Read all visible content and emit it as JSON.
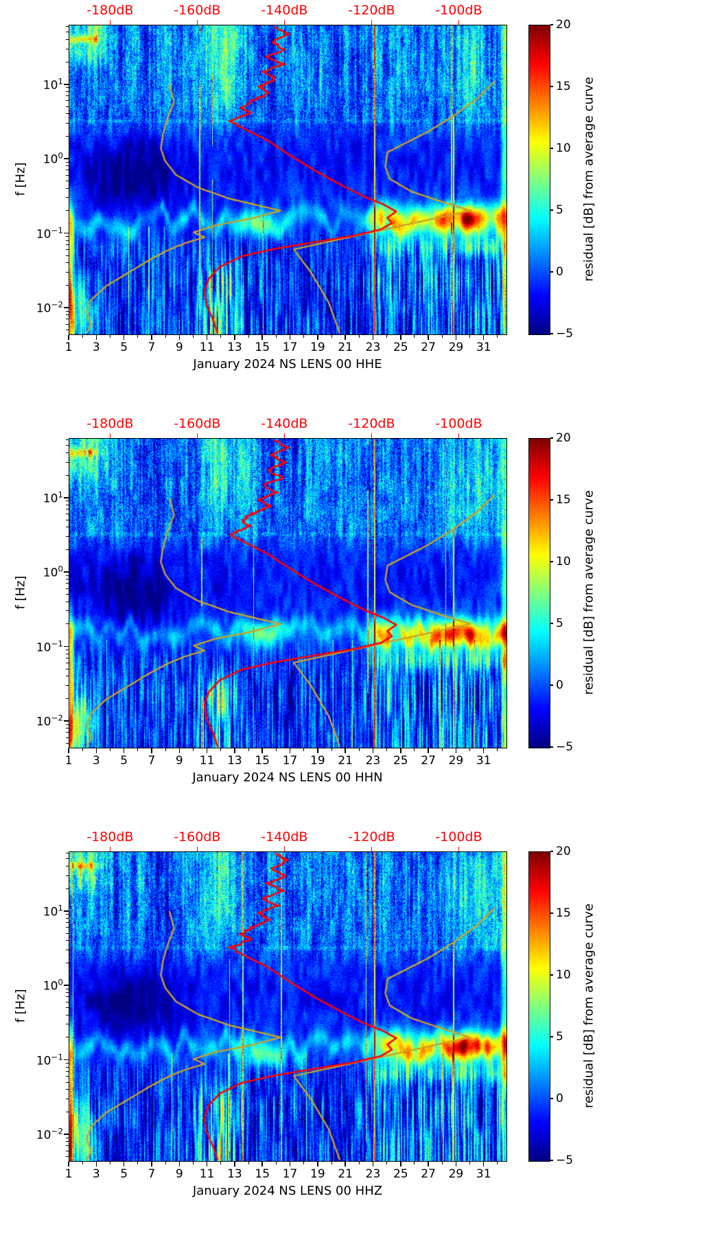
{
  "chart_data": {
    "type": "heatmap",
    "title": "",
    "panels": [
      {
        "channel": "HHE",
        "xlabel": "January 2024 NS LENS 00 HHE"
      },
      {
        "channel": "HHN",
        "xlabel": "January 2024 NS LENS 00 HHN"
      },
      {
        "channel": "HHZ",
        "xlabel": "January 2024 NS LENS 00 HHZ"
      }
    ],
    "axes": {
      "ylabel": "f [Hz]",
      "y_scale": "log",
      "freq_range_hz": [
        0.00447,
        63.1
      ],
      "y_tick_exponents": [
        1,
        0,
        -1,
        -2
      ],
      "day_range": [
        1,
        32.6
      ],
      "x_ticks": [
        1,
        3,
        5,
        7,
        9,
        11,
        13,
        15,
        17,
        19,
        21,
        23,
        25,
        27,
        29,
        31
      ],
      "top_axis": {
        "color": "#ff0000",
        "db_range": [
          -189.5,
          -89.2
        ],
        "ticks": [
          {
            "db": -180,
            "label": "-180dB"
          },
          {
            "db": -160,
            "label": "-160dB"
          },
          {
            "db": -140,
            "label": "-140dB"
          },
          {
            "db": -120,
            "label": "-120dB"
          },
          {
            "db": -100,
            "label": "-100dB"
          }
        ]
      }
    },
    "colorbar": {
      "label": "residual [dB] from average curve",
      "range": [
        -5,
        20
      ],
      "ticks": [
        20,
        15,
        10,
        5,
        0,
        -5
      ],
      "colormap": "jet"
    },
    "overlay_curves": {
      "mean_psd": {
        "color": "#ff0000",
        "points_db_hz": [
          [
            -142,
            60
          ],
          [
            -139.5,
            48
          ],
          [
            -143,
            38
          ],
          [
            -140,
            30
          ],
          [
            -144,
            24
          ],
          [
            -140.5,
            19
          ],
          [
            -145,
            15
          ],
          [
            -142,
            12
          ],
          [
            -146,
            9.5
          ],
          [
            -143.5,
            7.8
          ],
          [
            -147.5,
            6.2
          ],
          [
            -150,
            5.0
          ],
          [
            -148,
            4.2
          ],
          [
            -152.5,
            3.3
          ],
          [
            -149.5,
            2.6
          ],
          [
            -144,
            1.8
          ],
          [
            -139,
            1.15
          ],
          [
            -133,
            0.7
          ],
          [
            -127,
            0.45
          ],
          [
            -122,
            0.32
          ],
          [
            -117.5,
            0.25
          ],
          [
            -114.5,
            0.2
          ],
          [
            -116.5,
            0.165
          ],
          [
            -115.5,
            0.14
          ],
          [
            -118,
            0.115
          ],
          [
            -124,
            0.095
          ],
          [
            -133,
            0.078
          ],
          [
            -143,
            0.062
          ],
          [
            -150,
            0.05
          ],
          [
            -155,
            0.036
          ],
          [
            -157.5,
            0.025
          ],
          [
            -158.5,
            0.017
          ],
          [
            -158,
            0.011
          ],
          [
            -156.5,
            0.007
          ],
          [
            -155.5,
            0.0047
          ]
        ]
      },
      "model_low": {
        "color": "#c9a227",
        "points_db_hz": [
          [
            -166.5,
            10
          ],
          [
            -165.5,
            6
          ],
          [
            -167,
            3.5
          ],
          [
            -168,
            2.2
          ],
          [
            -168.5,
            1.4
          ],
          [
            -167.5,
            0.95
          ],
          [
            -165,
            0.62
          ],
          [
            -160,
            0.42
          ],
          [
            -153,
            0.3
          ],
          [
            -146,
            0.24
          ],
          [
            -141,
            0.205
          ],
          [
            -148,
            0.16
          ],
          [
            -156,
            0.13
          ],
          [
            -161,
            0.105
          ],
          [
            -158.5,
            0.09
          ],
          [
            -163,
            0.075
          ],
          [
            -167,
            0.06
          ],
          [
            -171,
            0.045
          ],
          [
            -176,
            0.03
          ],
          [
            -181,
            0.02
          ],
          [
            -184.5,
            0.013
          ],
          [
            -185.5,
            0.009
          ],
          [
            -184.5,
            0.006
          ],
          [
            -185.5,
            0.0047
          ]
        ]
      },
      "model_high": {
        "color": "#c9a227",
        "points_db_hz": [
          [
            -92,
            11
          ],
          [
            -96,
            6.5
          ],
          [
            -101.5,
            3.8
          ],
          [
            -107,
            2.4
          ],
          [
            -112,
            1.7
          ],
          [
            -116.5,
            1.25
          ],
          [
            -117,
            0.8
          ],
          [
            -116,
            0.55
          ],
          [
            -111,
            0.37
          ],
          [
            -104,
            0.27
          ],
          [
            -97.5,
            0.205
          ],
          [
            -138,
            0.062
          ],
          [
            -134,
            0.03
          ],
          [
            -130,
            0.012
          ],
          [
            -127.5,
            0.0047
          ]
        ]
      }
    }
  }
}
